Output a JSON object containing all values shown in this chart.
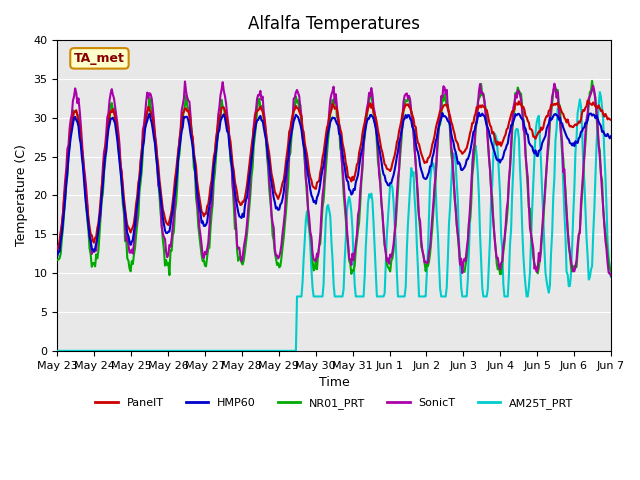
{
  "title": "Alfalfa Temperatures",
  "xlabel": "Time",
  "ylabel": "Temperature (C)",
  "ylim": [
    0,
    40
  ],
  "annotation_text": "TA_met",
  "annotation_bg": "#ffffcc",
  "annotation_border": "#cc8800",
  "annotation_text_color": "#880000",
  "bg_color": "#e8e8e8",
  "legend_entries": [
    "PanelT",
    "HMP60",
    "NR01_PRT",
    "SonicT",
    "AM25T_PRT"
  ],
  "legend_colors": [
    "#cc0000",
    "#0000cc",
    "#00aa00",
    "#aa00aa",
    "#00cccc"
  ],
  "xtick_labels": [
    "May 23",
    "May 24",
    "May 25",
    "May 26",
    "May 27",
    "May 28",
    "May 29",
    "May 30",
    "May 31",
    "Jun 1",
    "Jun 2",
    "Jun 3",
    "Jun 4",
    "Jun 5",
    "Jun 6",
    "Jun 7"
  ],
  "num_points": 500
}
